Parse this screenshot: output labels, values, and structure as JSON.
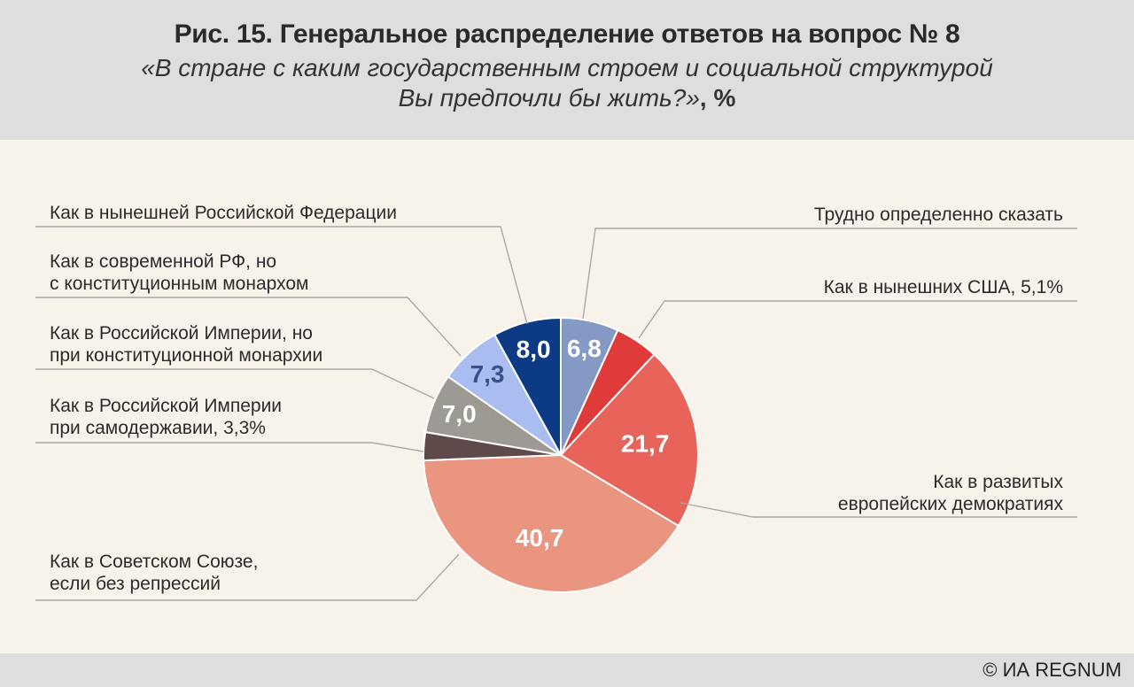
{
  "header": {
    "title": "Рис. 15. Генеральное распределение ответов на вопрос № 8",
    "subtitle_question_line1": "«В стране с каким государственным строем и социальной структурой",
    "subtitle_question_line2": "Вы предпочли бы жить?»",
    "subtitle_unit": ", %"
  },
  "footer": {
    "copyright": "© ИА REGNUM"
  },
  "chart_data": {
    "type": "pie",
    "title": "Рис. 15. Генеральное распределение ответов на вопрос № 8",
    "unit": "%",
    "start": "12 o'clock, clockwise",
    "slices": [
      {
        "label_lines": [
          "Трудно определенно сказать"
        ],
        "value": 6.8,
        "value_text": "6,8",
        "color": "#8499c4",
        "show_inside": true,
        "text_color": "#ffffff"
      },
      {
        "label_lines": [
          "Как в нынешних США, 5,1%"
        ],
        "value": 5.1,
        "value_text": "5,1",
        "color": "#e03b3b",
        "show_inside": false,
        "text_color": "#ffffff"
      },
      {
        "label_lines": [
          "Как в развитых",
          "европейских демократиях"
        ],
        "value": 21.7,
        "value_text": "21,7",
        "color": "#e8645a",
        "show_inside": true,
        "text_color": "#ffffff"
      },
      {
        "label_lines": [
          "Как в Советском Союзе,",
          "если без репрессий"
        ],
        "value": 40.7,
        "value_text": "40,7",
        "color": "#ea9580",
        "show_inside": true,
        "text_color": "#ffffff"
      },
      {
        "label_lines": [
          "Как в Российской Империи",
          "при самодержавии, 3,3%"
        ],
        "value": 3.3,
        "value_text": "3,3",
        "color": "#5e4a49",
        "show_inside": false,
        "text_color": "#ffffff"
      },
      {
        "label_lines": [
          "Как в Российской Империи, но",
          "при конституционной монархии"
        ],
        "value": 7.0,
        "value_text": "7,0",
        "color": "#9c9a92",
        "show_inside": true,
        "text_color": "#ffffff"
      },
      {
        "label_lines": [
          "Как в современной РФ, но",
          "с конституционным монархом"
        ],
        "value": 7.3,
        "value_text": "7,3",
        "color": "#a9bdf0",
        "show_inside": true,
        "text_color": "#3a4f8c"
      },
      {
        "label_lines": [
          "Как в нынешней Российской Федерации"
        ],
        "value": 8.0,
        "value_text": "8,0",
        "color": "#0c3a85",
        "show_inside": true,
        "text_color": "#ffffff"
      }
    ]
  }
}
